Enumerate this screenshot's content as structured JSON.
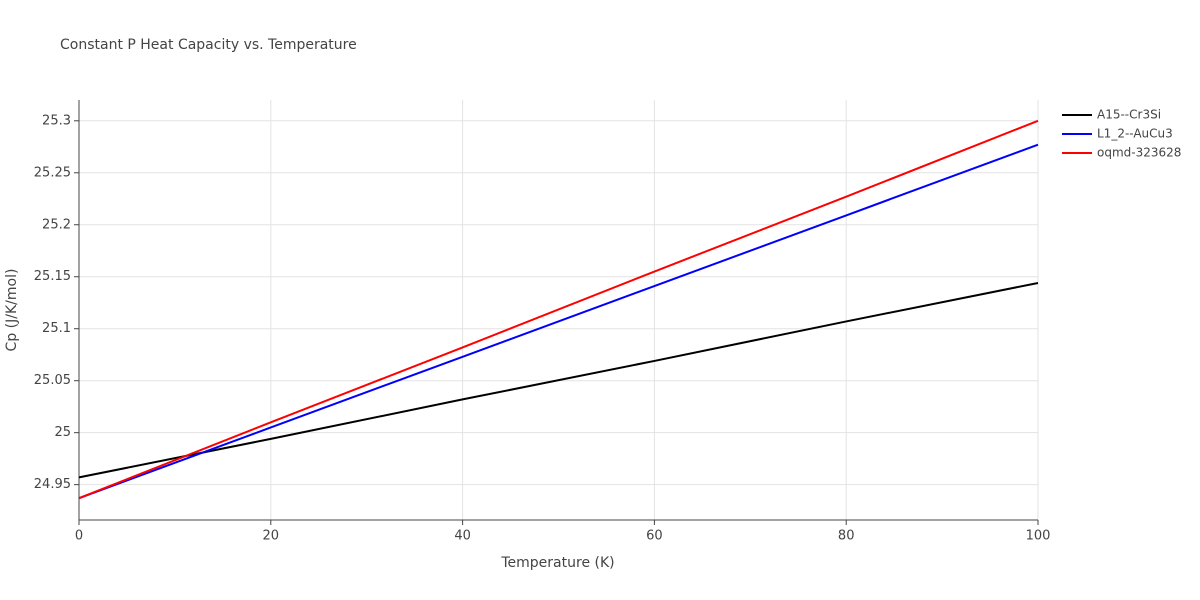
{
  "chart_data": {
    "type": "line",
    "title": "Constant P Heat Capacity vs. Temperature",
    "x_label": "Temperature (K)",
    "y_label": "Cp (J/K/mol)",
    "x": [
      0,
      20,
      40,
      60,
      80,
      100
    ],
    "series": [
      {
        "name": "A15--Cr3Si",
        "color": "#000000",
        "values": [
          24.957,
          24.994,
          25.032,
          25.069,
          25.107,
          25.144
        ]
      },
      {
        "name": "L1_2--AuCu3",
        "color": "#0000ff",
        "values": [
          24.937,
          25.005,
          25.073,
          25.141,
          25.209,
          25.277
        ]
      },
      {
        "name": "oqmd-323628",
        "color": "#ff0000",
        "values": [
          24.937,
          25.01,
          25.082,
          25.155,
          25.227,
          25.3
        ]
      }
    ],
    "xlim": [
      0,
      100
    ],
    "xticks": [
      0,
      20,
      40,
      60,
      80,
      100
    ],
    "ylim": [
      24.916,
      25.32
    ],
    "yticks": [
      24.95,
      25,
      25.05,
      25.1,
      25.15,
      25.2,
      25.25,
      25.3
    ],
    "grid": true,
    "legend": "right"
  }
}
